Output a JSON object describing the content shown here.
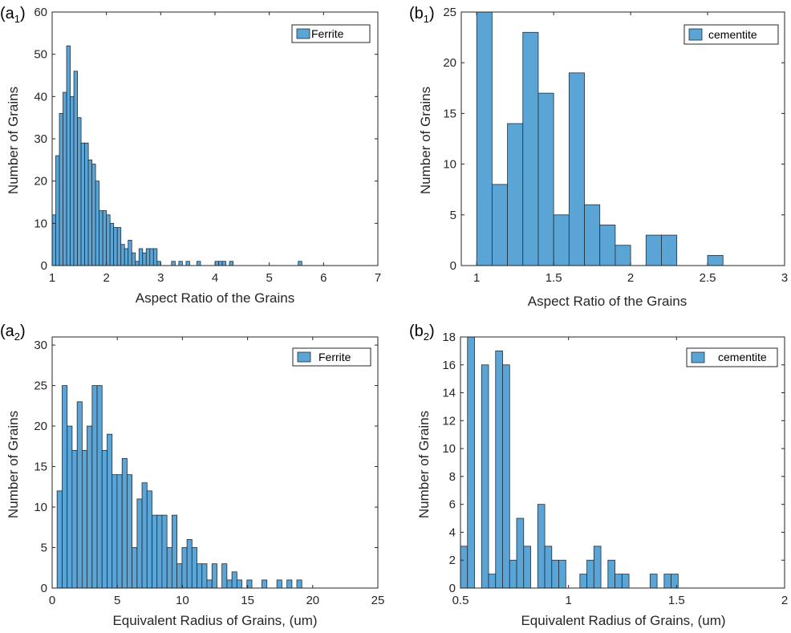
{
  "colors": {
    "bar_fill": "#5aa4d6",
    "bar_edge": "#1f2f3d",
    "axis": "#262626"
  },
  "chart_data": [
    {
      "id": "a1",
      "type": "bar",
      "panel_label": {
        "main": "(a",
        "sub": "1",
        "close": ")"
      },
      "xlabel": "Aspect Ratio of the Grains",
      "ylabel": "Number of Grains",
      "xlim": [
        1,
        7
      ],
      "ylim": [
        0,
        60
      ],
      "xticks": [
        1,
        2,
        3,
        4,
        5,
        6,
        7
      ],
      "yticks": [
        0,
        10,
        20,
        30,
        40,
        50,
        60
      ],
      "legend": "Ferrite",
      "legend_position": "top-right",
      "bin_width": 0.0667,
      "bins": [
        [
          1.0,
          12
        ],
        [
          1.0667,
          26
        ],
        [
          1.1333,
          36
        ],
        [
          1.2,
          41
        ],
        [
          1.2667,
          52
        ],
        [
          1.3333,
          40
        ],
        [
          1.4,
          46
        ],
        [
          1.4667,
          35
        ],
        [
          1.5333,
          29
        ],
        [
          1.6,
          29
        ],
        [
          1.6667,
          25
        ],
        [
          1.7333,
          24
        ],
        [
          1.8,
          20
        ],
        [
          1.8667,
          13
        ],
        [
          1.9333,
          13
        ],
        [
          2.0,
          12
        ],
        [
          2.0667,
          10
        ],
        [
          2.1333,
          9
        ],
        [
          2.2,
          9
        ],
        [
          2.2667,
          5
        ],
        [
          2.3333,
          4
        ],
        [
          2.4,
          6
        ],
        [
          2.4667,
          3
        ],
        [
          2.5333,
          1
        ],
        [
          2.6,
          4
        ],
        [
          2.6667,
          3
        ],
        [
          2.7333,
          4
        ],
        [
          2.8,
          4
        ],
        [
          2.8667,
          4
        ],
        [
          2.9333,
          1
        ],
        [
          3.2,
          1
        ],
        [
          3.3333,
          1
        ],
        [
          3.4667,
          1
        ],
        [
          3.6667,
          1
        ],
        [
          4.0,
          1
        ],
        [
          4.0667,
          1
        ],
        [
          4.1333,
          1
        ],
        [
          4.2667,
          1
        ],
        [
          5.5333,
          1
        ]
      ]
    },
    {
      "id": "b1",
      "type": "bar",
      "panel_label": {
        "main": "(b",
        "sub": "1",
        "close": ")"
      },
      "xlabel": "Aspect Ratio of the Grains",
      "ylabel": "Number of Grains",
      "xlim": [
        0.9,
        3
      ],
      "ylim": [
        0,
        25
      ],
      "xticks": [
        1,
        1.5,
        2,
        2.5,
        3
      ],
      "yticks": [
        0,
        5,
        10,
        15,
        20,
        25
      ],
      "legend": "cementite",
      "legend_position": "top-right",
      "bin_width": 0.1,
      "bins": [
        [
          1.0,
          25
        ],
        [
          1.1,
          8
        ],
        [
          1.2,
          14
        ],
        [
          1.3,
          23
        ],
        [
          1.4,
          17
        ],
        [
          1.5,
          5
        ],
        [
          1.6,
          19
        ],
        [
          1.7,
          6
        ],
        [
          1.8,
          4
        ],
        [
          1.9,
          2
        ],
        [
          2.0,
          0
        ],
        [
          2.1,
          3
        ],
        [
          2.2,
          3
        ],
        [
          2.3,
          0
        ],
        [
          2.4,
          0
        ],
        [
          2.5,
          1
        ]
      ]
    },
    {
      "id": "a2",
      "type": "bar",
      "panel_label": {
        "main": "(a",
        "sub": "2",
        "close": ")"
      },
      "xlabel": "Equivalent Radius of Grains, (um)",
      "ylabel": "Number of Grains",
      "xlim": [
        0,
        25
      ],
      "ylim": [
        0,
        31
      ],
      "xticks": [
        0,
        5,
        10,
        15,
        20,
        25
      ],
      "yticks": [
        0,
        5,
        10,
        15,
        20,
        25,
        30
      ],
      "legend": "Ferrite",
      "legend_position": "top-right",
      "bin_width": 0.3833,
      "bins": [
        [
          0.38,
          12
        ],
        [
          0.77,
          25
        ],
        [
          1.15,
          20
        ],
        [
          1.53,
          17
        ],
        [
          1.92,
          23
        ],
        [
          2.3,
          17
        ],
        [
          2.68,
          20
        ],
        [
          3.07,
          25
        ],
        [
          3.45,
          25
        ],
        [
          3.83,
          17
        ],
        [
          4.22,
          19
        ],
        [
          4.6,
          14
        ],
        [
          4.98,
          14
        ],
        [
          5.37,
          16
        ],
        [
          5.75,
          14
        ],
        [
          6.13,
          5
        ],
        [
          6.52,
          11
        ],
        [
          6.9,
          13
        ],
        [
          7.28,
          12
        ],
        [
          7.67,
          9
        ],
        [
          8.05,
          9
        ],
        [
          8.43,
          9
        ],
        [
          8.82,
          5
        ],
        [
          9.2,
          9
        ],
        [
          9.58,
          3
        ],
        [
          9.97,
          5
        ],
        [
          10.35,
          6
        ],
        [
          10.73,
          5
        ],
        [
          11.12,
          3
        ],
        [
          11.5,
          3
        ],
        [
          11.88,
          1
        ],
        [
          12.27,
          3
        ],
        [
          12.65,
          0
        ],
        [
          13.03,
          3
        ],
        [
          13.42,
          1
        ],
        [
          13.8,
          2
        ],
        [
          14.18,
          1
        ],
        [
          14.57,
          0
        ],
        [
          14.95,
          1
        ],
        [
          15.33,
          0
        ],
        [
          15.72,
          0
        ],
        [
          16.1,
          1
        ],
        [
          16.48,
          0
        ],
        [
          16.87,
          0
        ],
        [
          17.25,
          1
        ],
        [
          17.63,
          0
        ],
        [
          18.02,
          1
        ],
        [
          18.4,
          0
        ],
        [
          18.78,
          1
        ]
      ]
    },
    {
      "id": "b2",
      "type": "bar",
      "panel_label": {
        "main": "(b",
        "sub": "2",
        "close": ")"
      },
      "xlabel": "Equivalent Radius of Grains, (um)",
      "ylabel": "Number of Grains",
      "xlim": [
        0.5,
        2
      ],
      "ylim": [
        0,
        18
      ],
      "xticks": [
        0.5,
        1,
        1.5,
        2
      ],
      "yticks": [
        0,
        2,
        4,
        6,
        8,
        10,
        12,
        14,
        16,
        18
      ],
      "legend": "cementite",
      "legend_position": "top-right",
      "bin_width": 0.0325,
      "bins": [
        [
          0.5,
          3
        ],
        [
          0.5325,
          18
        ],
        [
          0.565,
          0
        ],
        [
          0.5975,
          16
        ],
        [
          0.63,
          1
        ],
        [
          0.6625,
          17
        ],
        [
          0.695,
          16
        ],
        [
          0.7275,
          2
        ],
        [
          0.76,
          5
        ],
        [
          0.7925,
          3
        ],
        [
          0.825,
          0
        ],
        [
          0.8575,
          6
        ],
        [
          0.89,
          3
        ],
        [
          0.9225,
          2
        ],
        [
          0.955,
          2
        ],
        [
          0.9875,
          0
        ],
        [
          1.02,
          0
        ],
        [
          1.0525,
          1
        ],
        [
          1.085,
          2
        ],
        [
          1.1175,
          3
        ],
        [
          1.15,
          0
        ],
        [
          1.1825,
          2
        ],
        [
          1.215,
          1
        ],
        [
          1.2475,
          1
        ],
        [
          1.28,
          0
        ],
        [
          1.3125,
          0
        ],
        [
          1.345,
          0
        ],
        [
          1.3775,
          1
        ],
        [
          1.41,
          0
        ],
        [
          1.4425,
          1
        ],
        [
          1.475,
          1
        ],
        [
          1.5075,
          0
        ]
      ]
    }
  ]
}
